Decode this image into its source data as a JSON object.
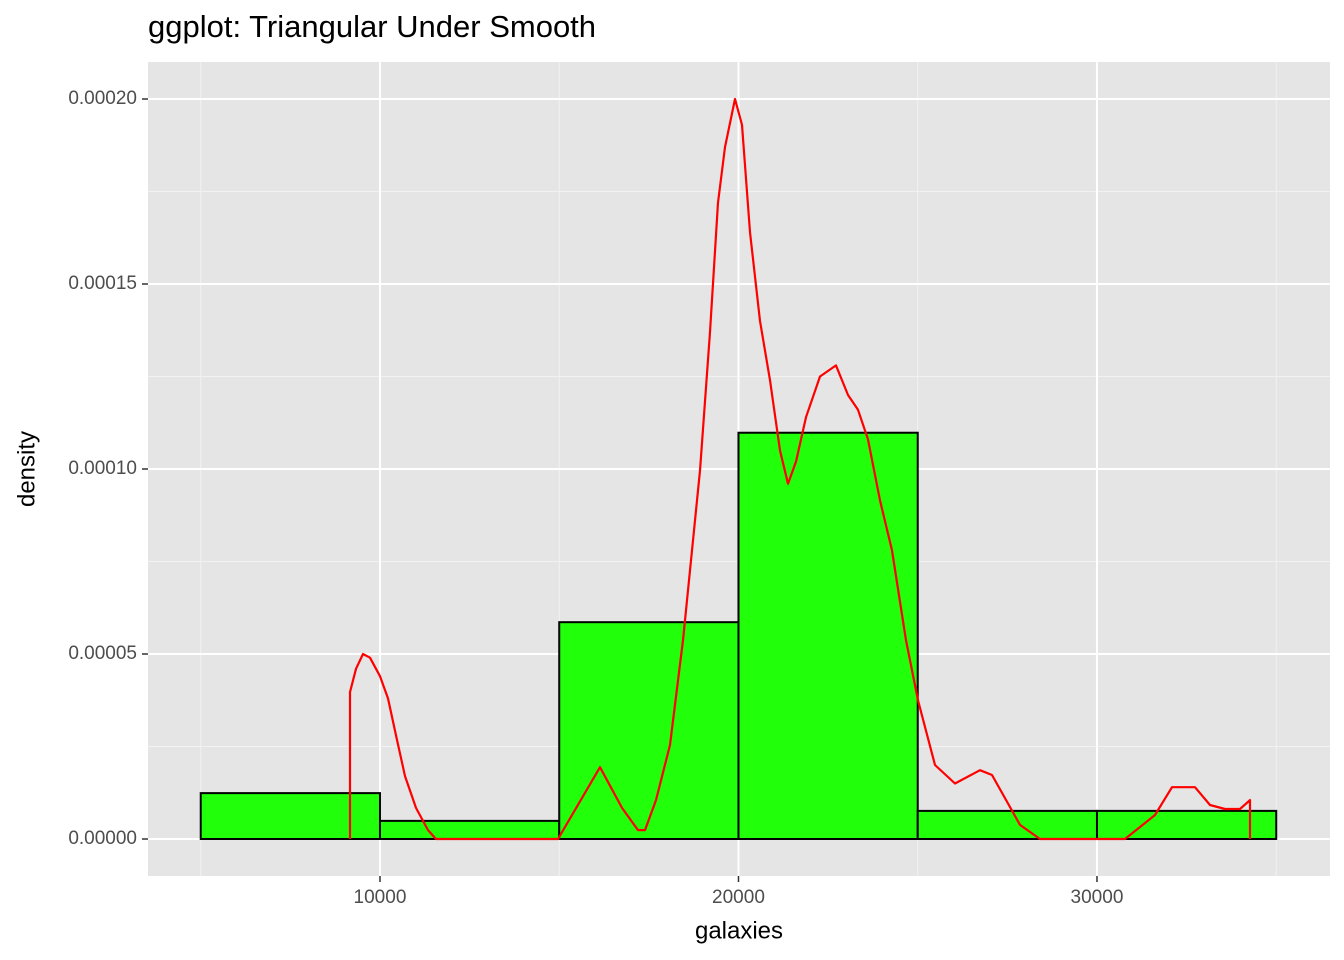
{
  "chart_data": {
    "type": "histogram",
    "title": "ggplot: Triangular Under Smooth",
    "x_label": "galaxies",
    "y_label": "density",
    "bins": [
      5000,
      10000,
      15000,
      20000,
      25000,
      30000,
      35000
    ],
    "values": [
      1.24e-05,
      4.9e-06,
      5.86e-05,
      0.0001098,
      7.6e-06,
      7.6e-06
    ],
    "color": "#22ff0a",
    "edgecolor": "#000000",
    "density_line": {
      "color": "#ff0000",
      "x": [
        9163,
        9163,
        9331,
        9526,
        9721,
        10000,
        10223,
        10446,
        10697,
        11004,
        11339,
        11562,
        14965,
        16137,
        16750,
        17197,
        17392,
        17699,
        18089,
        18452,
        18703,
        18926,
        19205,
        19428,
        19623,
        19902,
        20098,
        20321,
        20600,
        20879,
        21158,
        21381,
        21604,
        21883,
        22273,
        22720,
        23054,
        23333,
        23612,
        23947,
        24282,
        24672,
        25007,
        25481,
        26039,
        26736,
        27071,
        27852,
        28410,
        30781,
        31618,
        32092,
        32734,
        33152,
        33570,
        33989,
        34268,
        34268
      ],
      "y": [
        0,
        3.97e-05,
        4.6e-05,
        5e-05,
        4.9e-05,
        4.4e-05,
        3.8e-05,
        2.8e-05,
        1.7e-05,
        8.4e-06,
        2.4e-06,
        0,
        0,
        1.94e-05,
        8.4e-06,
        2.4e-06,
        2.4e-06,
        1.05e-05,
        2.54e-05,
        5.37e-05,
        7.8e-05,
        9.96e-05,
        0.000137,
        0.000172,
        0.000187,
        0.0002,
        0.000193,
        0.000164,
        0.00014,
        0.000124,
        0.000105,
        9.6e-05,
        0.000102,
        0.000114,
        0.000125,
        0.000128,
        0.00012,
        0.000116,
        0.000108,
        9.15e-05,
        7.8e-05,
        5.37e-05,
        3.75e-05,
        2e-05,
        1.5e-05,
        1.86e-05,
        1.73e-05,
        3.8e-06,
        0,
        0,
        6.5e-06,
        1.4e-05,
        1.4e-05,
        9.2e-06,
        8.1e-06,
        8.1e-06,
        1.05e-05,
        0
      ]
    },
    "xlim": [
      3529,
      36500
    ],
    "ylim": [
      -1e-05,
      0.00021
    ],
    "xticks": [
      10000,
      20000,
      30000
    ],
    "yticks": [
      {
        "value": 0,
        "label": "0.00000"
      },
      {
        "value": 5e-05,
        "label": "0.00005"
      },
      {
        "value": 0.0001,
        "label": "0.00010"
      },
      {
        "value": 0.00015,
        "label": "0.00015"
      },
      {
        "value": 0.0002,
        "label": "0.00020"
      }
    ],
    "x_minor_grid": [
      5000,
      15000,
      25000,
      35000
    ],
    "y_minor_grid": [
      2.5e-05,
      7.5e-05,
      0.000125,
      0.000175
    ],
    "grid": true
  }
}
